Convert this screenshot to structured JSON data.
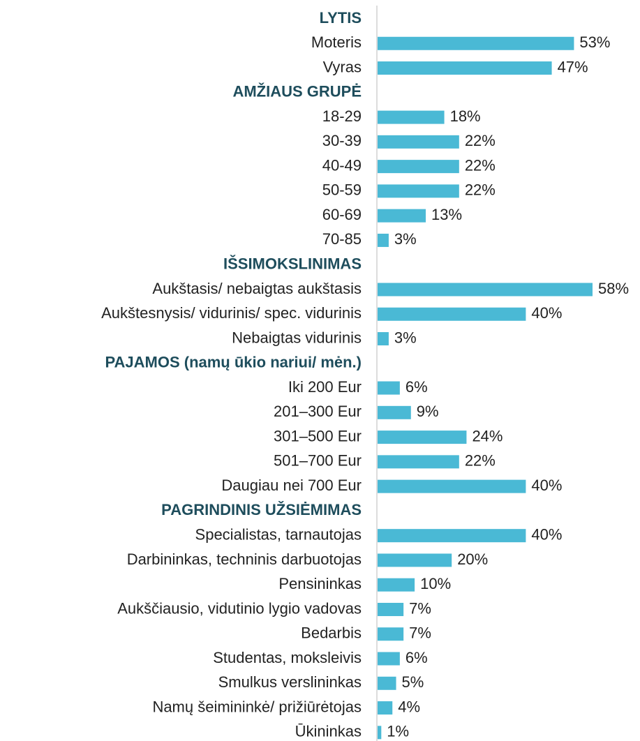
{
  "chart_data": {
    "type": "bar",
    "color": "#4ab9d5",
    "groups": [
      {
        "name": "LYTIS",
        "categories": [
          "Moteris",
          "Vyras"
        ],
        "values": [
          53,
          47
        ],
        "value_labels": [
          "53%",
          "47%"
        ]
      },
      {
        "name": "AMŽIAUS GRUPĖ",
        "categories": [
          "18-29",
          "30-39",
          "40-49",
          "50-59",
          "60-69",
          "70-85"
        ],
        "values": [
          18,
          22,
          22,
          22,
          13,
          3
        ],
        "value_labels": [
          "18%",
          "22%",
          "22%",
          "22%",
          "13%",
          "3%"
        ]
      },
      {
        "name": "IŠSIMOKSLINIMAS",
        "categories": [
          "Aukštasis/ nebaigtas aukštasis",
          "Aukštesnysis/ vidurinis/ spec.  vidurinis",
          "Nebaigtas vidurinis"
        ],
        "values": [
          58,
          40,
          3
        ],
        "value_labels": [
          "58%",
          "40%",
          "3%"
        ]
      },
      {
        "name": "PAJAMOS (namų ūkio nariui/ mėn.)",
        "categories": [
          "Iki 200 Eur",
          "201–300 Eur",
          "301–500 Eur",
          "501–700 Eur",
          "Daugiau nei 700 Eur"
        ],
        "values": [
          6,
          9,
          24,
          22,
          40
        ],
        "value_labels": [
          "6%",
          "9%",
          "24%",
          "22%",
          "40%"
        ]
      },
      {
        "name": "PAGRINDINIS UŽSIĖMIMAS",
        "categories": [
          "Specialistas, tarnautojas",
          "Darbininkas, techninis darbuotojas",
          "Pensininkas",
          "Aukščiausio, vidutinio lygio vadovas",
          "Bedarbis",
          "Studentas, moksleivis",
          "Smulkus verslininkas",
          "Namų šeimininkė/ prižiūrėtojas",
          "Ūkininkas"
        ],
        "values": [
          40,
          20,
          10,
          7,
          7,
          6,
          5,
          4,
          1
        ],
        "value_labels": [
          "40%",
          "20%",
          "10%",
          "7%",
          "7%",
          "6%",
          "5%",
          "4%",
          "1%"
        ]
      }
    ]
  }
}
